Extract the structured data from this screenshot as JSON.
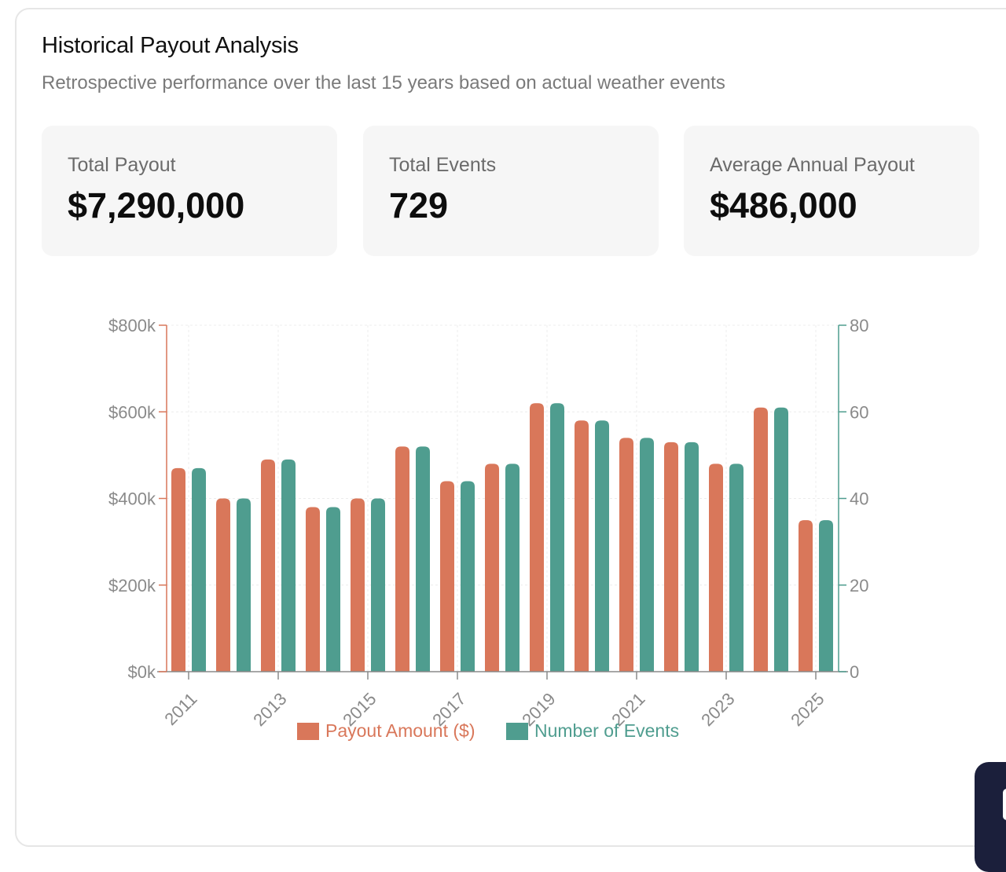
{
  "header": {
    "title": "Historical Payout Analysis",
    "subtitle": "Retrospective performance over the last 15 years based on actual weather events"
  },
  "stats": [
    {
      "label": "Total Payout",
      "value": "$7,290,000"
    },
    {
      "label": "Total Events",
      "value": "729"
    },
    {
      "label": "Average Annual Payout",
      "value": "$486,000"
    }
  ],
  "colors": {
    "payout": "#d9775a",
    "events": "#4f9d8f",
    "axis": "#8a8a8a",
    "grid": "#ececec"
  },
  "chart_data": {
    "type": "bar",
    "categories": [
      "2011",
      "2012",
      "2013",
      "2014",
      "2015",
      "2016",
      "2017",
      "2018",
      "2019",
      "2020",
      "2021",
      "2022",
      "2023",
      "2024",
      "2025"
    ],
    "x_tick_labels": [
      "2011",
      "2013",
      "2015",
      "2017",
      "2019",
      "2021",
      "2023",
      "2025"
    ],
    "series": [
      {
        "name": "Payout Amount ($)",
        "axis": "left",
        "values": [
          470000,
          400000,
          490000,
          380000,
          400000,
          520000,
          440000,
          480000,
          620000,
          580000,
          540000,
          530000,
          480000,
          610000,
          350000
        ]
      },
      {
        "name": "Number of Events",
        "axis": "right",
        "values": [
          47,
          40,
          49,
          38,
          40,
          52,
          44,
          48,
          62,
          58,
          54,
          53,
          48,
          61,
          35
        ]
      }
    ],
    "y_left": {
      "ticks": [
        "$0k",
        "$200k",
        "$400k",
        "$600k",
        "$800k"
      ],
      "ylim": [
        0,
        800000
      ]
    },
    "y_right": {
      "ticks": [
        "0",
        "20",
        "40",
        "60",
        "80"
      ],
      "ylim": [
        0,
        80
      ]
    },
    "legend_position": "bottom",
    "grid": true
  }
}
